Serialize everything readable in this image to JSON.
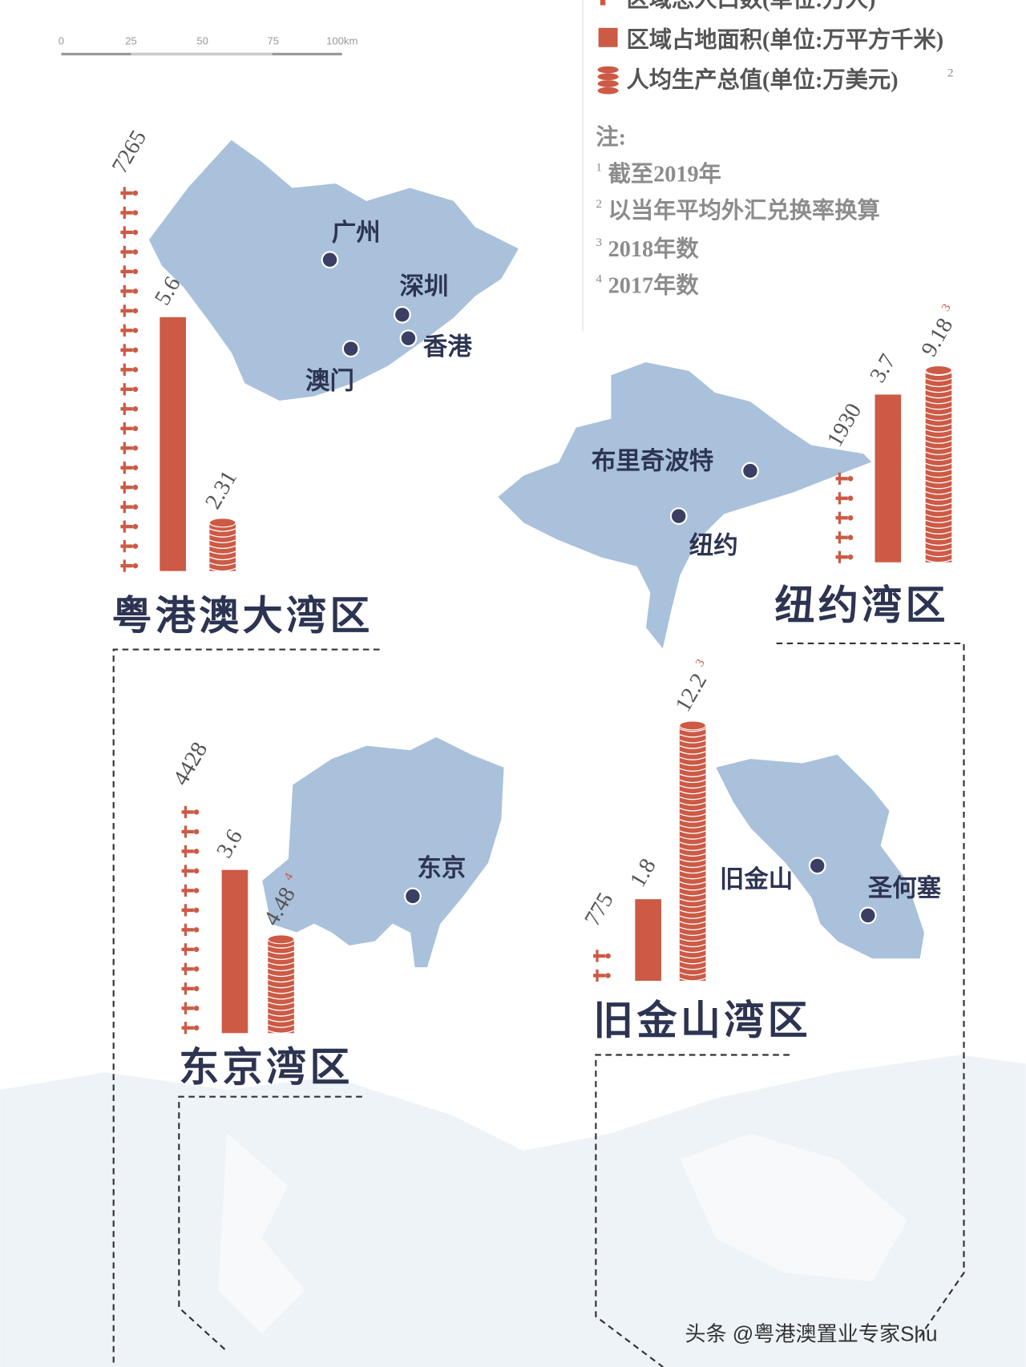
{
  "legend": [
    {
      "label": "区域总人口数(单位:万人)"
    },
    {
      "label": "区域占地面积(单位:万平方千米)"
    },
    {
      "label": "人均生产总值(单位:万美元)",
      "note": "2"
    }
  ],
  "scale_bar": {
    "ticks": [
      "0",
      "25",
      "50",
      "75",
      "100km"
    ]
  },
  "notes": {
    "title": "注:",
    "items": [
      {
        "mark": "1",
        "text": "截至2019年"
      },
      {
        "mark": "2",
        "text": "以当年平均外汇兑换率换算"
      },
      {
        "mark": "3",
        "text": "2018年数"
      },
      {
        "mark": "4",
        "text": "2017年数"
      }
    ]
  },
  "regions": [
    {
      "name": "粤港澳大湾区",
      "population": 7265,
      "area": 5.6,
      "gdp_per_capita": 2.31,
      "cities": [
        "广州",
        "深圳",
        "香港",
        "澳门"
      ]
    },
    {
      "name": "纽约湾区",
      "population": 1930,
      "area": 3.7,
      "gdp_per_capita": 9.18,
      "gdp_note": "3",
      "cities": [
        "布里奇波特",
        "纽约"
      ]
    },
    {
      "name": "东京湾区",
      "population": 4428,
      "area": 3.6,
      "gdp_per_capita": 4.48,
      "gdp_note": "4",
      "cities": [
        "东京"
      ]
    },
    {
      "name": "旧金山湾区",
      "population": 775,
      "area": 1.8,
      "gdp_per_capita": 12.2,
      "gdp_note": "3",
      "cities": [
        "旧金山",
        "圣何塞"
      ]
    }
  ],
  "watermark": "头条 @粤港澳置业专家Shu"
}
